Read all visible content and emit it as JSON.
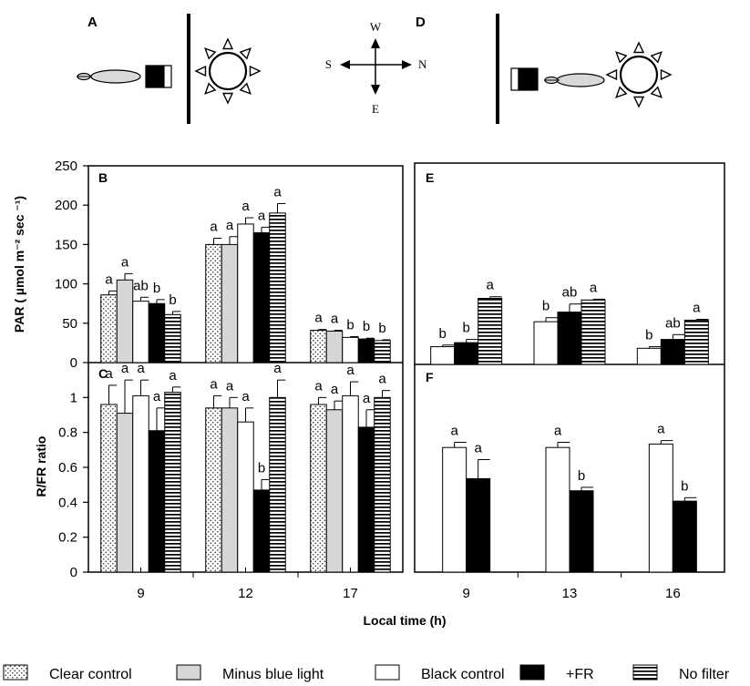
{
  "panel_labels": {
    "A": "A",
    "B": "B",
    "C": "C",
    "D": "D",
    "E": "E",
    "F": "F"
  },
  "compass": {
    "north": "N",
    "south": "S",
    "east": "E",
    "west": "W"
  },
  "xlabel": "Local time (h)",
  "legend": [
    {
      "key": "clear",
      "label": "Clear control",
      "fill": "dots"
    },
    {
      "key": "minusblue",
      "label": "Minus blue light",
      "fill": "#d6d6d6"
    },
    {
      "key": "black",
      "label": "Black control",
      "fill": "#ffffff"
    },
    {
      "key": "fr",
      "label": "+FR",
      "fill": "#000000"
    },
    {
      "key": "nofilter",
      "label": "No filter",
      "fill": "hlines"
    }
  ],
  "chart_data": [
    {
      "panel": "B",
      "type": "bar",
      "ylabel": "PAR ( µmol m⁻² sec ⁻¹)",
      "ylim": [
        0,
        250
      ],
      "yticks": [
        0,
        50,
        100,
        150,
        200,
        250
      ],
      "categories": [
        "9",
        "12",
        "17"
      ],
      "series": [
        {
          "name": "Clear control",
          "key": "clear",
          "values": [
            86,
            150,
            41
          ],
          "errors": [
            5,
            8,
            1
          ],
          "letters": [
            "a",
            "a",
            "a"
          ]
        },
        {
          "name": "Minus blue light",
          "key": "minusblue",
          "values": [
            105,
            150,
            40
          ],
          "errors": [
            8,
            10,
            1
          ],
          "letters": [
            "a",
            "a",
            "a"
          ]
        },
        {
          "name": "Black control",
          "key": "black",
          "values": [
            78,
            176,
            32
          ],
          "errors": [
            5,
            8,
            1
          ],
          "letters": [
            "ab",
            "a",
            "b"
          ]
        },
        {
          "name": "+FR",
          "key": "fr",
          "values": [
            75,
            165,
            30
          ],
          "errors": [
            5,
            7,
            1
          ],
          "letters": [
            "b",
            "a",
            "b"
          ]
        },
        {
          "name": "No filter",
          "key": "nofilter",
          "values": [
            61,
            190,
            28
          ],
          "errors": [
            4,
            12,
            1
          ],
          "letters": [
            "b",
            "a",
            "b"
          ]
        }
      ]
    },
    {
      "panel": "C",
      "type": "bar",
      "ylabel": "R/FR ratio",
      "ylim": [
        0,
        1.2
      ],
      "yticks": [
        0,
        0.2,
        0.4,
        0.6,
        0.8,
        1
      ],
      "categories": [
        "9",
        "12",
        "17"
      ],
      "series": [
        {
          "name": "Clear control",
          "key": "clear",
          "values": [
            0.96,
            0.94,
            0.96
          ],
          "errors": [
            0.11,
            0.07,
            0.04
          ],
          "letters": [
            "a",
            "a",
            "a"
          ]
        },
        {
          "name": "Minus blue light",
          "key": "minusblue",
          "values": [
            0.91,
            0.94,
            0.93
          ],
          "errors": [
            0.19,
            0.06,
            0.05
          ],
          "letters": [
            "a",
            "a",
            "a"
          ]
        },
        {
          "name": "Black control",
          "key": "black",
          "values": [
            1.01,
            0.86,
            1.01
          ],
          "errors": [
            0.09,
            0.08,
            0.08
          ],
          "letters": [
            "a",
            "a",
            "a"
          ]
        },
        {
          "name": "+FR",
          "key": "fr",
          "values": [
            0.81,
            0.47,
            0.83
          ],
          "errors": [
            0.13,
            0.06,
            0.1
          ],
          "letters": [
            "a",
            "b",
            "a"
          ]
        },
        {
          "name": "No filter",
          "key": "nofilter",
          "values": [
            1.03,
            1.0,
            1.0
          ],
          "errors": [
            0.03,
            0.1,
            0.04
          ],
          "letters": [
            "a",
            "a",
            "a"
          ]
        }
      ]
    },
    {
      "panel": "E",
      "type": "bar",
      "ylim": [
        0,
        250
      ],
      "categories": [
        "9",
        "13",
        "16"
      ],
      "series": [
        {
          "name": "Black control",
          "key": "black",
          "values": [
            22,
            53,
            20
          ],
          "errors": [
            2,
            5,
            2
          ],
          "letters": [
            "b",
            "b",
            "b"
          ]
        },
        {
          "name": "+FR",
          "key": "fr",
          "values": [
            27,
            65,
            31
          ],
          "errors": [
            4,
            10,
            6
          ],
          "letters": [
            "b",
            "ab",
            "ab"
          ]
        },
        {
          "name": "No filter",
          "key": "nofilter",
          "values": [
            82,
            80,
            55
          ],
          "errors": [
            2,
            1,
            1
          ],
          "letters": [
            "a",
            "a",
            "a"
          ]
        }
      ]
    },
    {
      "panel": "F",
      "type": "bar",
      "ylim": [
        0,
        1.2
      ],
      "categories": [
        "9",
        "13",
        "16"
      ],
      "series": [
        {
          "name": "Black control",
          "key": "black",
          "values": [
            0.72,
            0.72,
            0.74
          ],
          "errors": [
            0.03,
            0.03,
            0.02
          ],
          "letters": [
            "a",
            "a",
            "a"
          ]
        },
        {
          "name": "+FR",
          "key": "fr",
          "values": [
            0.54,
            0.47,
            0.41
          ],
          "errors": [
            0.11,
            0.02,
            0.02
          ],
          "letters": [
            "a",
            "b",
            "b"
          ]
        }
      ]
    }
  ]
}
